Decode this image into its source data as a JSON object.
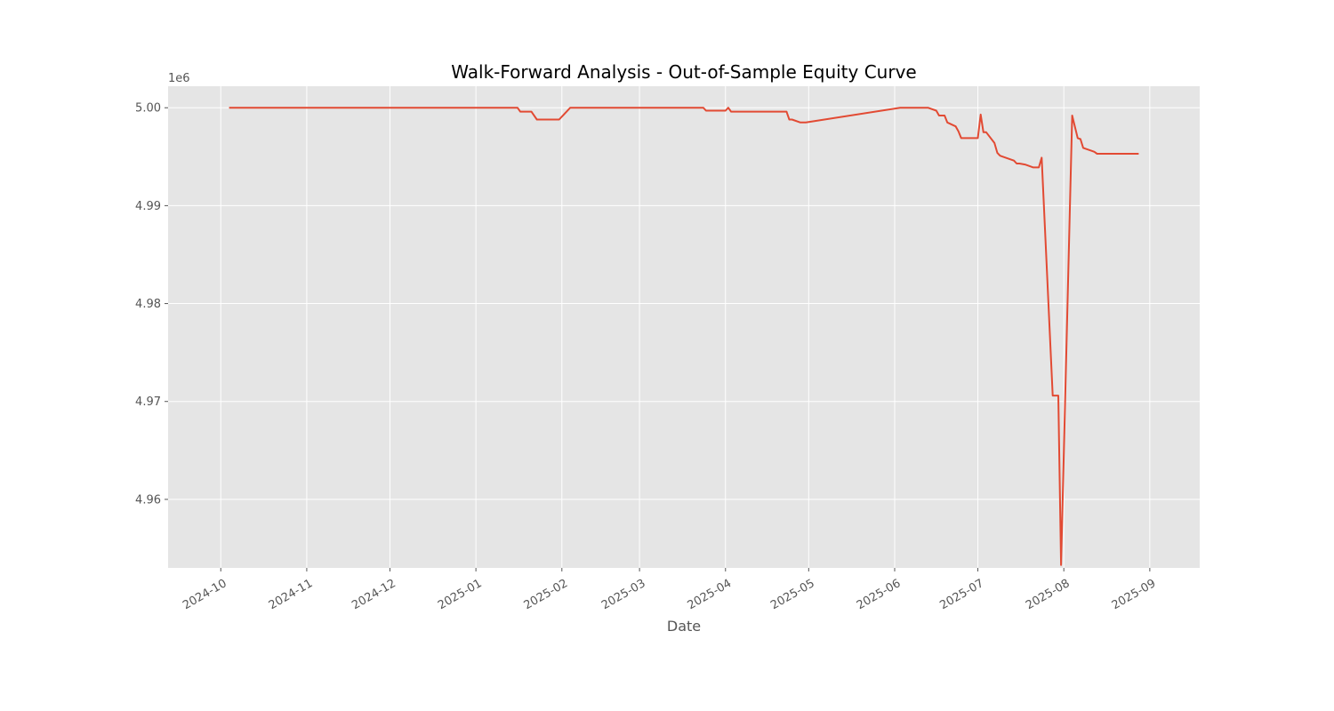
{
  "chart_data": {
    "type": "line",
    "title": "Walk-Forward Analysis - Out-of-Sample Equity Curve",
    "xlabel": "Date",
    "ylabel": "",
    "y_offset_label": "1e6",
    "x_ticks": [
      "2024-10",
      "2024-11",
      "2024-12",
      "2025-01",
      "2025-02",
      "2025-03",
      "2025-04",
      "2025-05",
      "2025-06",
      "2025-07",
      "2025-08",
      "2025-09"
    ],
    "y_ticks": [
      "4.96",
      "4.97",
      "4.98",
      "4.99",
      "5.00"
    ],
    "xlim": [
      "2024-09-12",
      "2025-09-19"
    ],
    "ylim": [
      4953000,
      5002200
    ],
    "grid": true,
    "background": "#E5E5E5",
    "line_color": "#E24A33",
    "series": [
      {
        "x": [
          "2024-10-04",
          "2025-01-16",
          "2025-01-17",
          "2025-01-21",
          "2025-01-23",
          "2025-01-24",
          "2025-01-31",
          "2025-02-04",
          "2025-03-24",
          "2025-03-25",
          "2025-04-01",
          "2025-04-02",
          "2025-04-03",
          "2025-04-23",
          "2025-04-24",
          "2025-04-25",
          "2025-04-28",
          "2025-04-30",
          "2025-06-03",
          "2025-06-13",
          "2025-06-16",
          "2025-06-17",
          "2025-06-19",
          "2025-06-20",
          "2025-06-23",
          "2025-06-24",
          "2025-06-25",
          "2025-06-26",
          "2025-07-01",
          "2025-07-02",
          "2025-07-03",
          "2025-07-04",
          "2025-07-07",
          "2025-07-08",
          "2025-07-09",
          "2025-07-10",
          "2025-07-14",
          "2025-07-15",
          "2025-07-16",
          "2025-07-18",
          "2025-07-19",
          "2025-07-21",
          "2025-07-22",
          "2025-07-23",
          "2025-07-24",
          "2025-07-28",
          "2025-07-29",
          "2025-07-30",
          "2025-07-31",
          "2025-08-04",
          "2025-08-06",
          "2025-08-07",
          "2025-08-08",
          "2025-08-11",
          "2025-08-12",
          "2025-08-13",
          "2025-08-28"
        ],
        "values": [
          5000000,
          5000000,
          4999600,
          4999600,
          4998800,
          4998800,
          4998800,
          5000000,
          5000000,
          4999700,
          4999700,
          5000000,
          4999600,
          4999600,
          4998800,
          4998800,
          4998500,
          4998500,
          5000000,
          5000000,
          4999700,
          4999200,
          4999200,
          4998500,
          4998100,
          4997600,
          4996900,
          4996900,
          4996900,
          4999300,
          4997500,
          4997500,
          4996400,
          4995400,
          4995100,
          4995000,
          4994600,
          4994300,
          4994300,
          4994200,
          4994100,
          4993900,
          4993900,
          4993900,
          4994900,
          4970600,
          4970600,
          4970600,
          4953300,
          4999200,
          4996900,
          4996800,
          4995900,
          4995600,
          4995500,
          4995300,
          4995300
        ]
      }
    ]
  }
}
